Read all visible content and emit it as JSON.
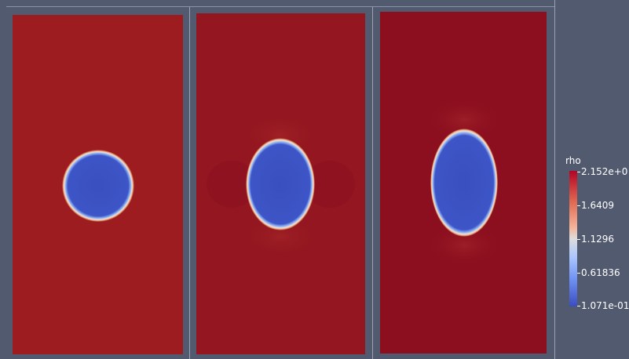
{
  "legend": {
    "title": "rho",
    "labels": [
      "2.152e+0",
      "1.6409",
      "1.1296",
      "0.61836",
      "1.071e-01"
    ],
    "colormap": [
      "#3b4cc0",
      "#6f91f3",
      "#a9c5fe",
      "#dddcdc",
      "#f4b59a",
      "#e0654f",
      "#b40426"
    ]
  },
  "views": [
    {
      "name": "view-1",
      "background_color": "#9c1c1f",
      "bubble_color": "#3a4ebf"
    },
    {
      "name": "view-2",
      "background_color": "#941620",
      "bubble_color": "#3a4ebf"
    },
    {
      "name": "view-3",
      "background_color": "#8c0f1f",
      "bubble_color": "#3a4ebf"
    }
  ],
  "colors": {
    "frame_background": "#525a6f"
  }
}
